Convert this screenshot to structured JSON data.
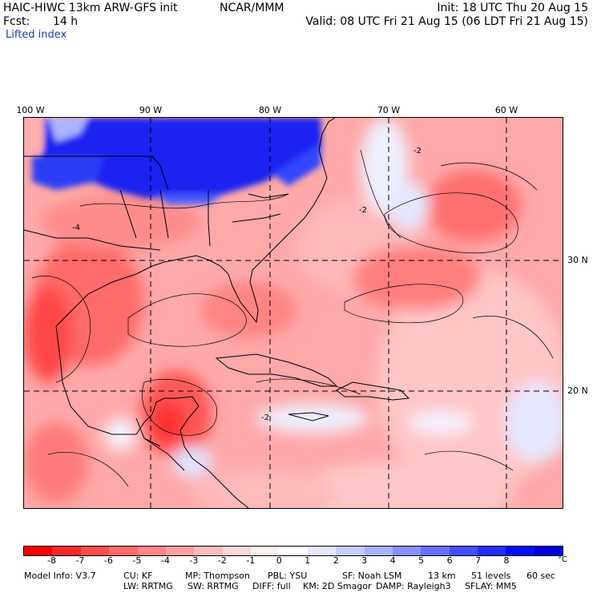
{
  "header": {
    "model": "HAIC-HIWC 13km ARW-GFS init",
    "org": "NCAR/MMM",
    "init": "Init: 18 UTC Thu 20 Aug 15",
    "fcst_label": "Fcst:",
    "fcst_value": "14 h",
    "valid": "Valid: 08 UTC Fri 21 Aug 15 (06 LDT Fri 21 Aug 15)",
    "field": "Lifted index"
  },
  "map": {
    "longitude_labels": [
      "100 W",
      "90 W",
      "80 W",
      "70 W",
      "60 W"
    ],
    "latitude_labels": [
      "30 N",
      "20 N"
    ],
    "contour_labels": [
      "-2",
      "-2",
      "-2",
      "-4"
    ]
  },
  "colorbar": {
    "colors": [
      "#ff0000",
      "#ff2a2a",
      "#ff4d4d",
      "#ff6a6a",
      "#ff8686",
      "#ffa0a0",
      "#ffbcbc",
      "#ffd7d7",
      "#fff0f0",
      "#ffffff",
      "#e6e8ff",
      "#c8cdff",
      "#a9b2ff",
      "#8791ff",
      "#6570ff",
      "#4050ff",
      "#2030ff",
      "#0010ff",
      "#0000dd"
    ],
    "labels": [
      "-8",
      "-7",
      "-6",
      "-5",
      "-4",
      "-3",
      "-2",
      "-1",
      "0",
      "1",
      "2",
      "3",
      "4",
      "5",
      "6",
      "7",
      "8"
    ],
    "unit": "°C"
  },
  "model_info": {
    "line1": [
      "Model Info: V3.7",
      "CU: KF",
      "MP: Thompson",
      "PBL: YSU",
      "SF: Noah LSM",
      "13 km",
      "51 levels",
      "60 sec"
    ],
    "line2": [
      "LW: RRTMG",
      "SW: RRTMG",
      "DIFF: full",
      "KM: 2D Smagor",
      "DAMP: Rayleigh3",
      "SFLAY: MM5"
    ]
  }
}
